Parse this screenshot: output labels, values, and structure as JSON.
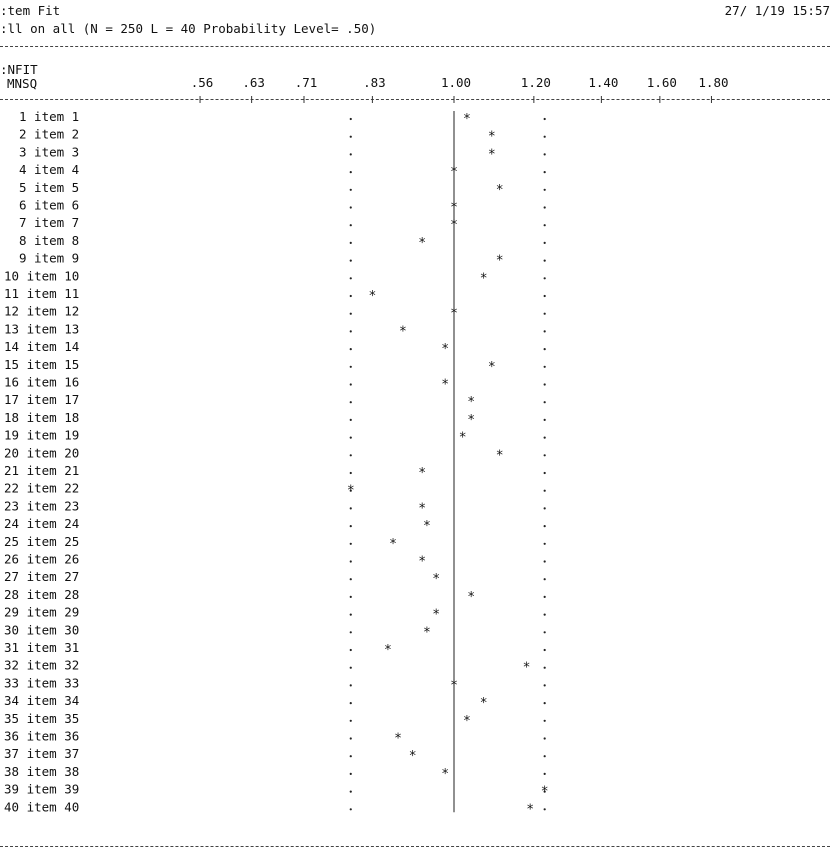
{
  "header": {
    "title": ":tem Fit",
    "timestamp": "27/ 1/19 15:57",
    "subtitle": ":ll on all (N = 250 L = 40 Probability Level= .50)"
  },
  "axis": {
    "label_line1": ":NFIT",
    "label_line2": "MNSQ"
  },
  "chart_data": {
    "type": "scatter",
    "title": "",
    "x_axis_label": "INFIT MNSQ",
    "x_scale": "log",
    "x_ticks": [
      ".56",
      ".63",
      ".71",
      ".83",
      "1.00",
      "1.20",
      "1.40",
      "1.60",
      "1.80"
    ],
    "x_tick_values": [
      0.56,
      0.63,
      0.71,
      0.83,
      1.0,
      1.2,
      1.4,
      1.6,
      1.8
    ],
    "reference_value": 1.0,
    "confidence_interval": [
      0.79,
      1.23
    ],
    "items": [
      {
        "label": "1 item 1",
        "value": 1.03
      },
      {
        "label": "2 item 2",
        "value": 1.09
      },
      {
        "label": "3 item 3",
        "value": 1.09
      },
      {
        "label": "4 item 4",
        "value": 1.0
      },
      {
        "label": "5 item 5",
        "value": 1.11
      },
      {
        "label": "6 item 6",
        "value": 1.0
      },
      {
        "label": "7 item 7",
        "value": 1.0
      },
      {
        "label": "8 item 8",
        "value": 0.93
      },
      {
        "label": "9 item 9",
        "value": 1.11
      },
      {
        "label": "10 item 10",
        "value": 1.07
      },
      {
        "label": "11 item 11",
        "value": 0.83
      },
      {
        "label": "12 item 12",
        "value": 1.0
      },
      {
        "label": "13 item 13",
        "value": 0.89
      },
      {
        "label": "14 item 14",
        "value": 0.98
      },
      {
        "label": "15 item 15",
        "value": 1.09
      },
      {
        "label": "16 item 16",
        "value": 0.98
      },
      {
        "label": "17 item 17",
        "value": 1.04
      },
      {
        "label": "18 item 18",
        "value": 1.04
      },
      {
        "label": "19 item 19",
        "value": 1.02
      },
      {
        "label": "20 item 20",
        "value": 1.11
      },
      {
        "label": "21 item 21",
        "value": 0.93
      },
      {
        "label": "22 item 22",
        "value": 0.79
      },
      {
        "label": "23 item 23",
        "value": 0.93
      },
      {
        "label": "24 item 24",
        "value": 0.94
      },
      {
        "label": "25 item 25",
        "value": 0.87
      },
      {
        "label": "26 item 26",
        "value": 0.93
      },
      {
        "label": "27 item 27",
        "value": 0.96
      },
      {
        "label": "28 item 28",
        "value": 1.04
      },
      {
        "label": "29 item 29",
        "value": 0.96
      },
      {
        "label": "30 item 30",
        "value": 0.94
      },
      {
        "label": "31 item 31",
        "value": 0.86
      },
      {
        "label": "32 item 32",
        "value": 1.18
      },
      {
        "label": "33 item 33",
        "value": 1.0
      },
      {
        "label": "34 item 34",
        "value": 1.07
      },
      {
        "label": "35 item 35",
        "value": 1.03
      },
      {
        "label": "36 item 36",
        "value": 0.88
      },
      {
        "label": "37 item 37",
        "value": 0.91
      },
      {
        "label": "38 item 38",
        "value": 0.98
      },
      {
        "label": "39 item 39",
        "value": 1.23
      },
      {
        "label": "40 item 40",
        "value": 1.19
      }
    ]
  }
}
